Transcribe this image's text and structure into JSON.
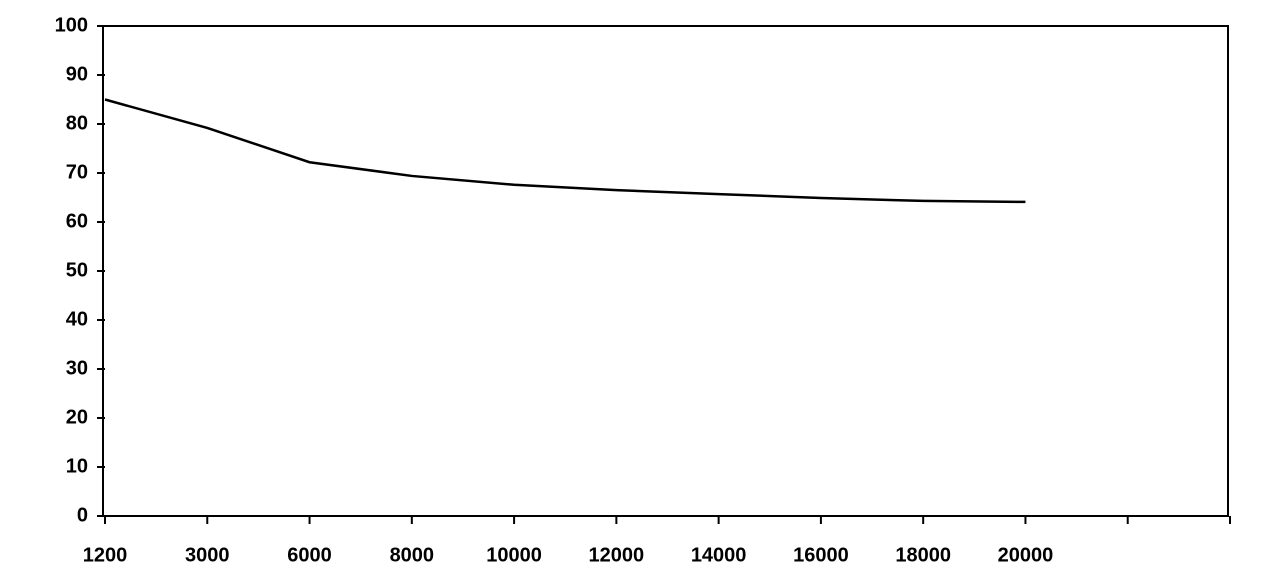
{
  "chart_data": {
    "type": "line",
    "categories": [
      "1200",
      "3000",
      "6000",
      "8000",
      "10000",
      "12000",
      "14000",
      "16000",
      "18000",
      "20000",
      null,
      null
    ],
    "values": [
      85,
      79.2,
      72.2,
      69.4,
      67.6,
      66.5,
      65.7,
      64.9,
      64.3,
      64.1,
      null,
      null
    ],
    "color": "#000000",
    "ylim": [
      0,
      100
    ],
    "yticks": [
      0,
      10,
      20,
      30,
      40,
      50,
      60,
      70,
      80,
      90,
      100
    ],
    "grid": false
  }
}
